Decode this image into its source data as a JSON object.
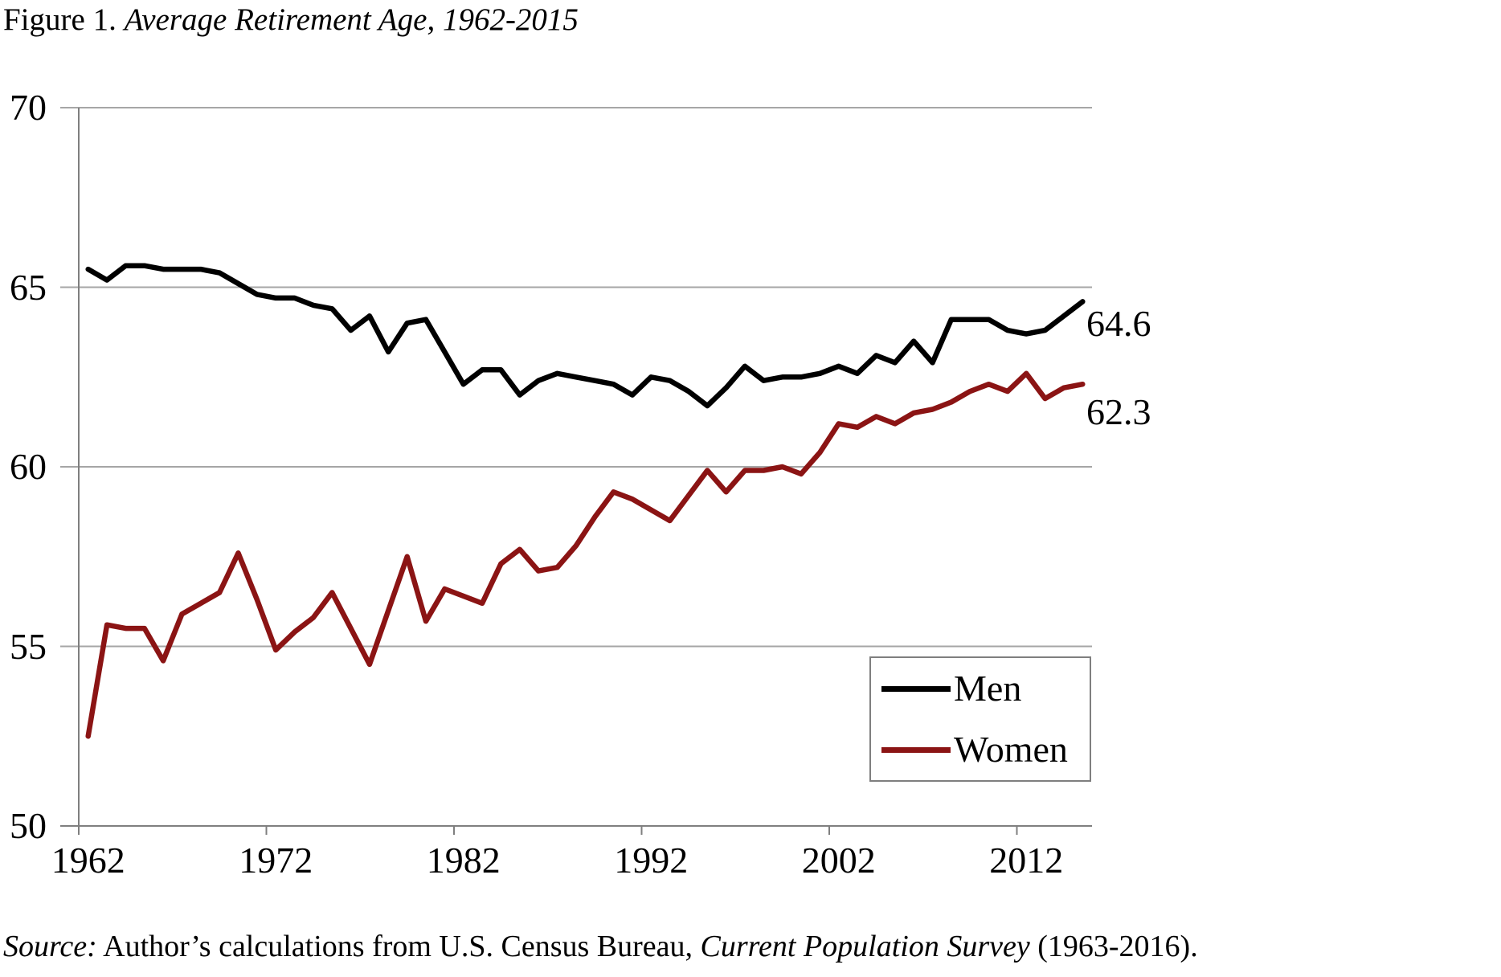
{
  "page": {
    "background": "#ffffff"
  },
  "title": {
    "prefix": "Figure 1. ",
    "main": "Average Retirement Age, 1962-2015"
  },
  "source_note": {
    "parts": [
      {
        "text": "Source:",
        "italic": true
      },
      {
        "text": " Author’s calculations from U.S. Census Bureau, ",
        "italic": false
      },
      {
        "text": "Current Population Survey",
        "italic": true
      },
      {
        "text": " (1963-2016).",
        "italic": false
      }
    ]
  },
  "chart_data": {
    "type": "line",
    "title": "Figure 1. Average Retirement Age, 1962-2015",
    "xlabel": "",
    "ylabel": "",
    "ylim": [
      50,
      70
    ],
    "yticks": [
      70,
      65,
      60,
      55,
      50
    ],
    "xticks": [
      1962,
      1972,
      1982,
      1992,
      2002,
      2012
    ],
    "grid": "horizontal",
    "legend_position": "inside-bottom-right",
    "axis_color": "#7f7f7f",
    "gridline_color": "#a6a6a6",
    "years": [
      1962,
      1963,
      1964,
      1965,
      1966,
      1967,
      1968,
      1969,
      1970,
      1971,
      1972,
      1973,
      1974,
      1975,
      1976,
      1977,
      1978,
      1979,
      1980,
      1981,
      1982,
      1983,
      1984,
      1985,
      1986,
      1987,
      1988,
      1989,
      1990,
      1991,
      1992,
      1993,
      1994,
      1995,
      1996,
      1997,
      1998,
      1999,
      2000,
      2001,
      2002,
      2003,
      2004,
      2005,
      2006,
      2007,
      2008,
      2009,
      2010,
      2011,
      2012,
      2013,
      2014,
      2015
    ],
    "series": [
      {
        "name": "Men",
        "color": "#000000",
        "end_label": "64.6",
        "values": [
          65.5,
          65.2,
          65.6,
          65.6,
          65.5,
          65.5,
          65.5,
          65.4,
          65.1,
          64.8,
          64.7,
          64.7,
          64.5,
          64.4,
          63.8,
          64.2,
          63.2,
          64.0,
          64.1,
          63.2,
          62.3,
          62.7,
          62.7,
          62.0,
          62.4,
          62.6,
          62.5,
          62.4,
          62.3,
          62.0,
          62.5,
          62.4,
          62.1,
          61.7,
          62.2,
          62.8,
          62.4,
          62.5,
          62.5,
          62.6,
          62.8,
          62.6,
          63.1,
          62.9,
          63.5,
          62.9,
          64.1,
          64.1,
          64.1,
          63.8,
          63.7,
          63.8,
          64.2,
          64.6
        ]
      },
      {
        "name": "Women",
        "color": "#8b1414",
        "end_label": "62.3",
        "values": [
          52.5,
          55.6,
          55.5,
          55.5,
          54.6,
          55.9,
          56.2,
          56.5,
          57.6,
          56.3,
          54.9,
          55.4,
          55.8,
          56.5,
          55.5,
          54.5,
          56.0,
          57.5,
          55.7,
          56.6,
          56.4,
          56.2,
          57.3,
          57.7,
          57.1,
          57.2,
          57.8,
          58.6,
          59.3,
          59.1,
          58.8,
          58.5,
          59.2,
          59.9,
          59.3,
          59.9,
          59.9,
          60.0,
          59.8,
          60.4,
          61.2,
          61.1,
          61.4,
          61.2,
          61.5,
          61.6,
          61.8,
          62.1,
          62.3,
          62.1,
          62.6,
          61.9,
          62.2,
          62.3
        ]
      }
    ]
  }
}
